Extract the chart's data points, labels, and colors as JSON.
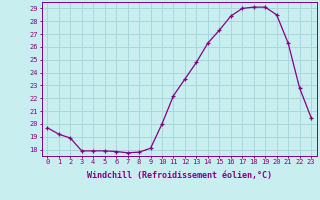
{
  "x": [
    0,
    1,
    2,
    3,
    4,
    5,
    6,
    7,
    8,
    9,
    10,
    11,
    12,
    13,
    14,
    15,
    16,
    17,
    18,
    19,
    20,
    21,
    22,
    23
  ],
  "y": [
    19.7,
    19.2,
    18.9,
    17.9,
    17.9,
    17.9,
    17.85,
    17.75,
    17.8,
    18.1,
    20.0,
    22.2,
    23.5,
    24.8,
    26.3,
    27.3,
    28.4,
    29.0,
    29.1,
    29.1,
    28.5,
    26.3,
    22.8,
    20.5
  ],
  "line_color": "#880088",
  "marker": "+",
  "marker_size": 3,
  "bg_color": "#c8eef0",
  "grid_color": "#a8d8dc",
  "axis_color": "#880088",
  "xlabel": "Windchill (Refroidissement éolien,°C)",
  "ylim": [
    17.5,
    29.5
  ],
  "xlim": [
    -0.5,
    23.5
  ],
  "yticks": [
    18,
    19,
    20,
    21,
    22,
    23,
    24,
    25,
    26,
    27,
    28,
    29
  ],
  "xticks": [
    0,
    1,
    2,
    3,
    4,
    5,
    6,
    7,
    8,
    9,
    10,
    11,
    12,
    13,
    14,
    15,
    16,
    17,
    18,
    19,
    20,
    21,
    22,
    23
  ],
  "tick_fontsize": 5.0,
  "xlabel_fontsize": 6.0
}
